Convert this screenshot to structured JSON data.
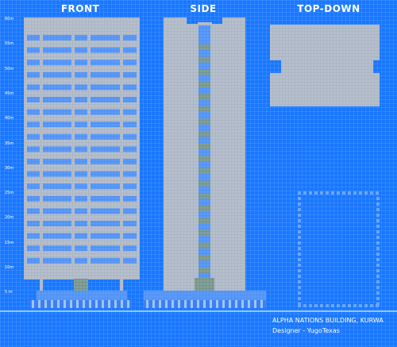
{
  "views": {
    "front": "FRONT",
    "side": "SIDE",
    "top": "TOP-DOWN"
  },
  "scale_labels": [
    "60m",
    "55m",
    "50m",
    "45m",
    "40m",
    "35m",
    "30m",
    "25m",
    "20m",
    "15m",
    "10m",
    "5 m"
  ],
  "title_block": {
    "name": "ALPHA NATIONS BUILDING, KURWA",
    "designer": "Designer - YugoTexas"
  },
  "colors": {
    "background": "#1877ff",
    "concrete": "#a9b3c2",
    "glass": "#5a99f5",
    "green_glass": "#7e9a92",
    "base": "#4f8ef5"
  }
}
